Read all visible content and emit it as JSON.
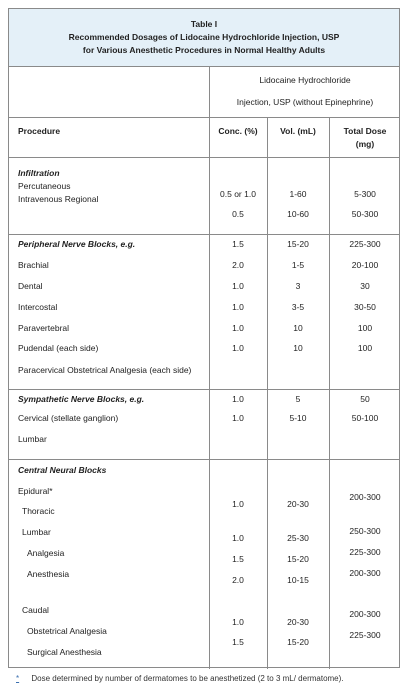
{
  "title": {
    "line1": "Table I",
    "line2": "Recommended Dosages of Lidocaine Hydrochloride Injection, USP",
    "line3": "for Various Anesthetic Procedures in Normal Healthy Adults"
  },
  "group_header": {
    "line1": "Lidocaine Hydrochloride",
    "line2": "Injection, USP (without Epinephrine)"
  },
  "columns": {
    "procedure": "Procedure",
    "conc": "Conc. (%)",
    "vol": "Vol. (mL)",
    "dose_line1": "Total Dose",
    "dose_line2": "(mg)"
  },
  "sections": {
    "infiltration": {
      "heading": "Infiltration",
      "items": [
        "Percutaneous",
        "Intravenous Regional"
      ],
      "conc": [
        "0.5 or 1.0",
        "0.5"
      ],
      "vol": [
        "1-60",
        "10-60"
      ],
      "dose": [
        "5-300",
        "50-300"
      ]
    },
    "peripheral": {
      "heading": "Peripheral Nerve Blocks, e.g.",
      "items": [
        "Brachial",
        "Dental",
        "Intercostal",
        "Paravertebral",
        "Pudendal (each side)",
        "Paracervical Obstetrical Analgesia (each side)"
      ],
      "conc": [
        "1.5",
        "2.0",
        "1.0",
        "1.0",
        "1.0",
        "1.0"
      ],
      "vol": [
        "15-20",
        "1-5",
        "3",
        "3-5",
        "10",
        "10"
      ],
      "dose": [
        "225-300",
        "20-100",
        "30",
        "30-50",
        "100",
        "100"
      ]
    },
    "sympathetic": {
      "heading": "Sympathetic Nerve Blocks, e.g.",
      "items": [
        "Cervical (stellate ganglion)",
        "Lumbar"
      ],
      "conc": [
        "1.0",
        "1.0"
      ],
      "vol": [
        "5",
        "5-10"
      ],
      "dose": [
        "50",
        "50-100"
      ]
    },
    "central": {
      "heading": "Central Neural Blocks",
      "items": [
        "Epidural",
        "Thoracic",
        "Lumbar",
        "Analgesia",
        "Anesthesia",
        "Caudal",
        "Obstetrical Analgesia",
        "Surgical Anesthesia"
      ],
      "conc": [
        "1.0",
        "1.0",
        "1.5",
        "2.0",
        "1.0",
        "1.5"
      ],
      "vol": [
        "20-30",
        "25-30",
        "15-20",
        "10-15",
        "20-30",
        "15-20"
      ],
      "dose": [
        "200-300",
        "250-300",
        "225-300",
        "200-300",
        "200-300",
        "225-300"
      ]
    }
  },
  "footnote": {
    "mark": "*",
    "text": "Dose determined by number of dermatomes to be anesthetized (2 to 3 mL/ dermatome)."
  }
}
